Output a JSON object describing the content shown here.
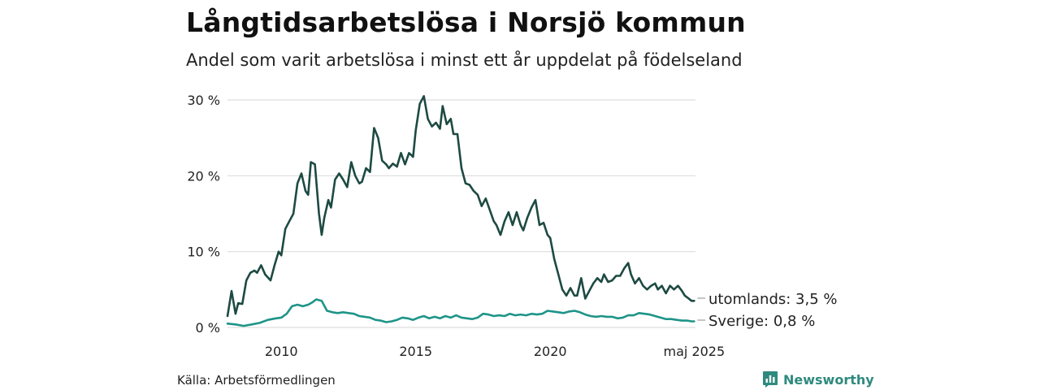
{
  "header": {
    "title": "Långtidsarbetslösa i Norsjö kommun",
    "subtitle": "Andel som varit arbetslösa i minst ett år uppdelat på födelseland"
  },
  "footer": {
    "source": "Källa: Arbetsförmedlingen",
    "brand": "Newsworthy"
  },
  "colors": {
    "utomlands": "#1d4a42",
    "sverige": "#1e9488",
    "grid": "#dddddd",
    "brand": "#2f8a7e"
  },
  "icons": {
    "brand_logo": "newsworthy-bar-chart-icon"
  },
  "chart_data": {
    "type": "line",
    "title": "Långtidsarbetslösa i Norsjö kommun",
    "subtitle": "Andel som varit arbetslösa i minst ett år uppdelat på födelseland",
    "xlabel": "",
    "ylabel": "",
    "xlim": [
      2008.0,
      2025.4
    ],
    "ylim": [
      0,
      30
    ],
    "grid": true,
    "legend": "end-of-line labels",
    "y_ticks": [
      {
        "value": 0,
        "label": "0 %"
      },
      {
        "value": 10,
        "label": "10 %"
      },
      {
        "value": 20,
        "label": "20 %"
      },
      {
        "value": 30,
        "label": "30 %"
      }
    ],
    "x_ticks": [
      {
        "value": 2010,
        "label": "2010"
      },
      {
        "value": 2015,
        "label": "2015"
      },
      {
        "value": 2020,
        "label": "2020"
      },
      {
        "value": 2025.35,
        "label": "maj 2025"
      }
    ],
    "series": [
      {
        "name": "utomlands",
        "end_label": "utomlands: 3,5 %",
        "color": "#1d4a42",
        "x": [
          2008.0,
          2008.15,
          2008.3,
          2008.4,
          2008.55,
          2008.7,
          2008.85,
          2009.0,
          2009.1,
          2009.25,
          2009.4,
          2009.6,
          2009.75,
          2009.9,
          2010.0,
          2010.15,
          2010.3,
          2010.45,
          2010.6,
          2010.75,
          2010.9,
          2011.0,
          2011.1,
          2011.25,
          2011.4,
          2011.5,
          2011.6,
          2011.75,
          2011.85,
          2012.0,
          2012.15,
          2012.3,
          2012.45,
          2012.6,
          2012.75,
          2012.9,
          2013.0,
          2013.15,
          2013.3,
          2013.45,
          2013.6,
          2013.75,
          2013.9,
          2014.0,
          2014.15,
          2014.3,
          2014.45,
          2014.6,
          2014.75,
          2014.9,
          2015.0,
          2015.15,
          2015.3,
          2015.45,
          2015.6,
          2015.75,
          2015.9,
          2016.0,
          2016.15,
          2016.3,
          2016.4,
          2016.55,
          2016.7,
          2016.85,
          2017.0,
          2017.15,
          2017.3,
          2017.45,
          2017.6,
          2017.75,
          2017.9,
          2018.0,
          2018.15,
          2018.3,
          2018.45,
          2018.6,
          2018.75,
          2018.9,
          2019.0,
          2019.15,
          2019.3,
          2019.45,
          2019.6,
          2019.75,
          2019.9,
          2020.0,
          2020.15,
          2020.3,
          2020.45,
          2020.6,
          2020.75,
          2020.9,
          2021.0,
          2021.15,
          2021.3,
          2021.45,
          2021.6,
          2021.75,
          2021.9,
          2022.0,
          2022.15,
          2022.3,
          2022.45,
          2022.6,
          2022.75,
          2022.9,
          2023.0,
          2023.15,
          2023.3,
          2023.45,
          2023.6,
          2023.75,
          2023.9,
          2024.0,
          2024.15,
          2024.3,
          2024.45,
          2024.6,
          2024.75,
          2024.9,
          2025.0,
          2025.15,
          2025.25,
          2025.35
        ],
        "values": [
          1.5,
          4.8,
          1.8,
          3.2,
          3.1,
          6.2,
          7.2,
          7.5,
          7.2,
          8.2,
          7.0,
          6.2,
          8.2,
          10.0,
          9.5,
          13.0,
          14.0,
          15.0,
          19.0,
          20.3,
          18.0,
          17.5,
          21.8,
          21.5,
          15.0,
          12.2,
          14.5,
          16.8,
          15.8,
          19.5,
          20.3,
          19.5,
          18.5,
          21.8,
          20.0,
          19.0,
          19.2,
          21.0,
          20.5,
          26.3,
          25.0,
          22.0,
          21.5,
          21.0,
          21.6,
          21.2,
          23.0,
          21.5,
          23.0,
          22.5,
          26.0,
          29.5,
          30.5,
          27.5,
          26.5,
          27.0,
          26.2,
          29.2,
          26.8,
          27.5,
          25.5,
          25.5,
          21.0,
          19.0,
          18.8,
          18.0,
          17.5,
          16.0,
          17.0,
          15.5,
          14.0,
          13.5,
          12.2,
          14.0,
          15.2,
          13.5,
          15.2,
          13.5,
          12.8,
          14.5,
          15.8,
          16.8,
          13.5,
          13.8,
          12.2,
          11.8,
          9.0,
          7.0,
          5.0,
          4.2,
          5.2,
          4.2,
          4.2,
          6.5,
          3.8,
          4.8,
          5.8,
          6.5,
          6.0,
          7.0,
          6.0,
          6.2,
          6.8,
          6.8,
          7.8,
          8.5,
          7.0,
          5.8,
          6.5,
          5.5,
          5.0,
          5.5,
          5.8,
          5.0,
          5.5,
          4.5,
          5.5,
          5.0,
          5.5,
          4.8,
          4.2,
          3.8,
          3.5,
          3.5
        ]
      },
      {
        "name": "Sverige",
        "end_label": "Sverige: 0,8 %",
        "color": "#1e9488",
        "x": [
          2008.0,
          2008.3,
          2008.6,
          2008.9,
          2009.2,
          2009.5,
          2009.8,
          2010.0,
          2010.2,
          2010.4,
          2010.6,
          2010.8,
          2011.0,
          2011.15,
          2011.3,
          2011.5,
          2011.7,
          2011.9,
          2012.1,
          2012.3,
          2012.5,
          2012.7,
          2012.9,
          2013.1,
          2013.3,
          2013.5,
          2013.7,
          2013.9,
          2014.1,
          2014.3,
          2014.5,
          2014.7,
          2014.9,
          2015.1,
          2015.3,
          2015.5,
          2015.7,
          2015.9,
          2016.1,
          2016.3,
          2016.5,
          2016.7,
          2016.9,
          2017.1,
          2017.3,
          2017.5,
          2017.7,
          2017.9,
          2018.1,
          2018.3,
          2018.5,
          2018.7,
          2018.9,
          2019.1,
          2019.3,
          2019.5,
          2019.7,
          2019.9,
          2020.1,
          2020.3,
          2020.5,
          2020.7,
          2020.9,
          2021.1,
          2021.3,
          2021.5,
          2021.7,
          2021.9,
          2022.1,
          2022.3,
          2022.5,
          2022.7,
          2022.9,
          2023.1,
          2023.3,
          2023.5,
          2023.7,
          2023.9,
          2024.1,
          2024.3,
          2024.5,
          2024.7,
          2024.9,
          2025.1,
          2025.25,
          2025.35
        ],
        "values": [
          0.5,
          0.4,
          0.2,
          0.4,
          0.6,
          1.0,
          1.2,
          1.3,
          1.8,
          2.8,
          3.0,
          2.8,
          3.0,
          3.3,
          3.7,
          3.5,
          2.2,
          2.0,
          1.9,
          2.0,
          1.9,
          1.8,
          1.5,
          1.4,
          1.3,
          1.0,
          0.9,
          0.7,
          0.8,
          1.0,
          1.3,
          1.2,
          1.0,
          1.3,
          1.5,
          1.2,
          1.4,
          1.2,
          1.5,
          1.3,
          1.6,
          1.3,
          1.2,
          1.1,
          1.3,
          1.8,
          1.7,
          1.5,
          1.6,
          1.5,
          1.8,
          1.6,
          1.7,
          1.6,
          1.8,
          1.7,
          1.8,
          2.2,
          2.1,
          2.0,
          1.9,
          2.1,
          2.2,
          2.0,
          1.7,
          1.5,
          1.4,
          1.5,
          1.4,
          1.4,
          1.2,
          1.3,
          1.6,
          1.6,
          1.9,
          1.8,
          1.7,
          1.5,
          1.3,
          1.1,
          1.1,
          1.0,
          0.9,
          0.9,
          0.8,
          0.8
        ]
      }
    ]
  }
}
